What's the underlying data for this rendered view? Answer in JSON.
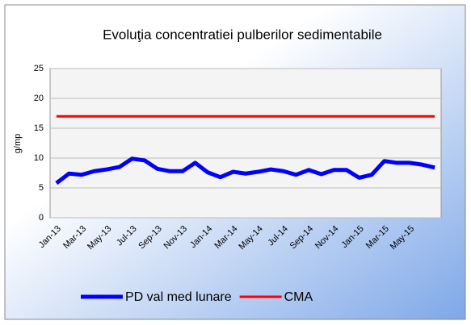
{
  "chart_data": {
    "type": "line",
    "title": "Evoluţia concentratiei  pulberilor sedimentabile",
    "y_label": "g/mp",
    "categories": [
      "Jan-13",
      null,
      "Mar-13",
      null,
      "May-13",
      null,
      "Jul-13",
      null,
      "Sep-13",
      null,
      "Nov-13",
      null,
      "Jan-14",
      null,
      "Mar-14",
      null,
      "May-14",
      null,
      "Jul-14",
      null,
      "Sep-14",
      null,
      "Nov-14",
      null,
      "Jan-15",
      null,
      "Mar-15",
      null,
      "May-15",
      null,
      null
    ],
    "series": [
      {
        "name": "PD val med lunare",
        "color": "#0000ff",
        "values": [
          5.8,
          7.4,
          7.2,
          7.8,
          8.1,
          8.5,
          9.9,
          9.6,
          8.2,
          7.8,
          7.8,
          9.2,
          7.6,
          6.8,
          7.7,
          7.4,
          7.7,
          8.1,
          7.8,
          7.2,
          8.0,
          7.3,
          8.0,
          8.0,
          6.7,
          7.2,
          9.5,
          9.2,
          9.2,
          8.9,
          8.4
        ]
      },
      {
        "name": "CMA",
        "color": "#ff0000",
        "values": [
          17,
          17,
          17,
          17,
          17,
          17,
          17,
          17,
          17,
          17,
          17,
          17,
          17,
          17,
          17,
          17,
          17,
          17,
          17,
          17,
          17,
          17,
          17,
          17,
          17,
          17,
          17,
          17,
          17,
          17,
          17
        ]
      }
    ],
    "ylim": [
      0,
      25
    ],
    "yticks": [
      0,
      5,
      10,
      15,
      20,
      25
    ],
    "grid": true,
    "legend": "bottom"
  }
}
